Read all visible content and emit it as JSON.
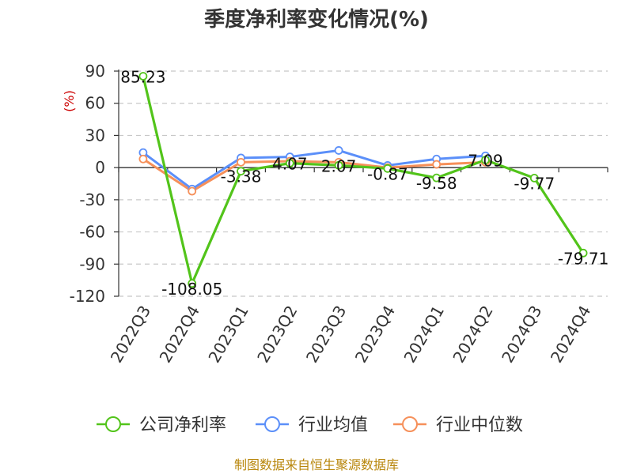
{
  "chart_data": {
    "type": "line",
    "title": "季度净利率变化情况(%)",
    "unit_label": "(%)",
    "categories": [
      "2022Q3",
      "2022Q4",
      "2023Q1",
      "2023Q2",
      "2023Q3",
      "2023Q4",
      "2024Q1",
      "2024Q2",
      "2024Q3",
      "2024Q4"
    ],
    "series": [
      {
        "name": "公司净利率",
        "color": "#52c41a",
        "values": [
          85.23,
          -108.05,
          -3.38,
          4.07,
          2.07,
          -0.87,
          -9.58,
          7.09,
          -9.77,
          -79.71
        ],
        "labels": [
          "85.23",
          "-108.05",
          "-3.38",
          "4.07",
          "2.07",
          "-0.87",
          "-9.58",
          "7.09",
          "-9.77",
          "-79.71"
        ]
      },
      {
        "name": "行业均值",
        "color": "#5b8ff9",
        "values": [
          14,
          -20,
          9,
          10,
          16,
          2,
          8,
          11,
          null,
          null
        ]
      },
      {
        "name": "行业中位数",
        "color": "#f6905a",
        "values": [
          8,
          -22,
          5,
          6,
          5,
          0,
          3,
          5,
          null,
          null
        ]
      }
    ],
    "yticks": [
      90,
      60,
      30,
      0,
      -30,
      -60,
      -90,
      -120
    ],
    "ylim": [
      -120,
      90
    ],
    "grid": true,
    "legend_position": "bottom"
  },
  "source": "制图数据来自恒生聚源数据库"
}
